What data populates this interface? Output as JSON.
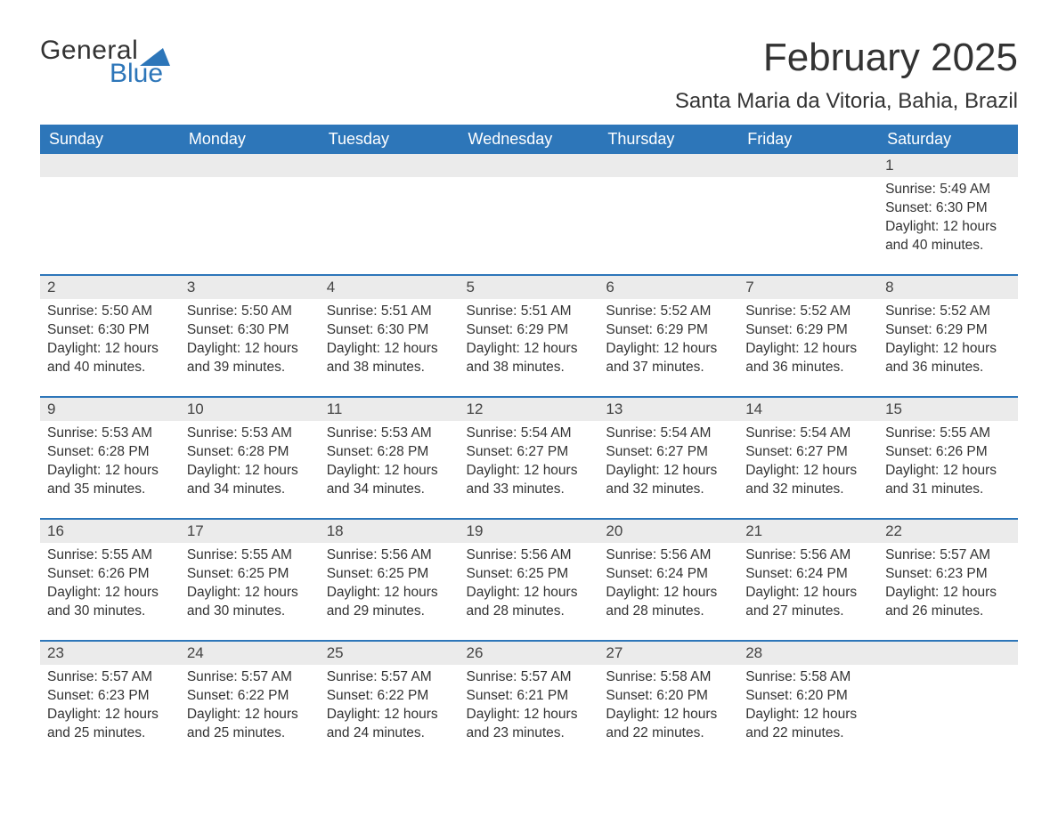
{
  "logo": {
    "word1": "General",
    "word2": "Blue",
    "sail_color": "#2d76b9"
  },
  "title": "February 2025",
  "location": "Santa Maria da Vitoria, Bahia, Brazil",
  "colors": {
    "header_bg": "#2d76b9",
    "header_text": "#ffffff",
    "daynum_bg": "#ebebeb",
    "row_divider": "#2d76b9",
    "body_text": "#333333",
    "background": "#ffffff"
  },
  "typography": {
    "title_fontsize": 44,
    "location_fontsize": 24,
    "header_fontsize": 18,
    "daynum_fontsize": 17,
    "body_fontsize": 15.5
  },
  "day_headers": [
    "Sunday",
    "Monday",
    "Tuesday",
    "Wednesday",
    "Thursday",
    "Friday",
    "Saturday"
  ],
  "weeks": [
    [
      null,
      null,
      null,
      null,
      null,
      null,
      {
        "n": "1",
        "sr": "Sunrise: 5:49 AM",
        "ss": "Sunset: 6:30 PM",
        "d1": "Daylight: 12 hours",
        "d2": "and 40 minutes."
      }
    ],
    [
      {
        "n": "2",
        "sr": "Sunrise: 5:50 AM",
        "ss": "Sunset: 6:30 PM",
        "d1": "Daylight: 12 hours",
        "d2": "and 40 minutes."
      },
      {
        "n": "3",
        "sr": "Sunrise: 5:50 AM",
        "ss": "Sunset: 6:30 PM",
        "d1": "Daylight: 12 hours",
        "d2": "and 39 minutes."
      },
      {
        "n": "4",
        "sr": "Sunrise: 5:51 AM",
        "ss": "Sunset: 6:30 PM",
        "d1": "Daylight: 12 hours",
        "d2": "and 38 minutes."
      },
      {
        "n": "5",
        "sr": "Sunrise: 5:51 AM",
        "ss": "Sunset: 6:29 PM",
        "d1": "Daylight: 12 hours",
        "d2": "and 38 minutes."
      },
      {
        "n": "6",
        "sr": "Sunrise: 5:52 AM",
        "ss": "Sunset: 6:29 PM",
        "d1": "Daylight: 12 hours",
        "d2": "and 37 minutes."
      },
      {
        "n": "7",
        "sr": "Sunrise: 5:52 AM",
        "ss": "Sunset: 6:29 PM",
        "d1": "Daylight: 12 hours",
        "d2": "and 36 minutes."
      },
      {
        "n": "8",
        "sr": "Sunrise: 5:52 AM",
        "ss": "Sunset: 6:29 PM",
        "d1": "Daylight: 12 hours",
        "d2": "and 36 minutes."
      }
    ],
    [
      {
        "n": "9",
        "sr": "Sunrise: 5:53 AM",
        "ss": "Sunset: 6:28 PM",
        "d1": "Daylight: 12 hours",
        "d2": "and 35 minutes."
      },
      {
        "n": "10",
        "sr": "Sunrise: 5:53 AM",
        "ss": "Sunset: 6:28 PM",
        "d1": "Daylight: 12 hours",
        "d2": "and 34 minutes."
      },
      {
        "n": "11",
        "sr": "Sunrise: 5:53 AM",
        "ss": "Sunset: 6:28 PM",
        "d1": "Daylight: 12 hours",
        "d2": "and 34 minutes."
      },
      {
        "n": "12",
        "sr": "Sunrise: 5:54 AM",
        "ss": "Sunset: 6:27 PM",
        "d1": "Daylight: 12 hours",
        "d2": "and 33 minutes."
      },
      {
        "n": "13",
        "sr": "Sunrise: 5:54 AM",
        "ss": "Sunset: 6:27 PM",
        "d1": "Daylight: 12 hours",
        "d2": "and 32 minutes."
      },
      {
        "n": "14",
        "sr": "Sunrise: 5:54 AM",
        "ss": "Sunset: 6:27 PM",
        "d1": "Daylight: 12 hours",
        "d2": "and 32 minutes."
      },
      {
        "n": "15",
        "sr": "Sunrise: 5:55 AM",
        "ss": "Sunset: 6:26 PM",
        "d1": "Daylight: 12 hours",
        "d2": "and 31 minutes."
      }
    ],
    [
      {
        "n": "16",
        "sr": "Sunrise: 5:55 AM",
        "ss": "Sunset: 6:26 PM",
        "d1": "Daylight: 12 hours",
        "d2": "and 30 minutes."
      },
      {
        "n": "17",
        "sr": "Sunrise: 5:55 AM",
        "ss": "Sunset: 6:25 PM",
        "d1": "Daylight: 12 hours",
        "d2": "and 30 minutes."
      },
      {
        "n": "18",
        "sr": "Sunrise: 5:56 AM",
        "ss": "Sunset: 6:25 PM",
        "d1": "Daylight: 12 hours",
        "d2": "and 29 minutes."
      },
      {
        "n": "19",
        "sr": "Sunrise: 5:56 AM",
        "ss": "Sunset: 6:25 PM",
        "d1": "Daylight: 12 hours",
        "d2": "and 28 minutes."
      },
      {
        "n": "20",
        "sr": "Sunrise: 5:56 AM",
        "ss": "Sunset: 6:24 PM",
        "d1": "Daylight: 12 hours",
        "d2": "and 28 minutes."
      },
      {
        "n": "21",
        "sr": "Sunrise: 5:56 AM",
        "ss": "Sunset: 6:24 PM",
        "d1": "Daylight: 12 hours",
        "d2": "and 27 minutes."
      },
      {
        "n": "22",
        "sr": "Sunrise: 5:57 AM",
        "ss": "Sunset: 6:23 PM",
        "d1": "Daylight: 12 hours",
        "d2": "and 26 minutes."
      }
    ],
    [
      {
        "n": "23",
        "sr": "Sunrise: 5:57 AM",
        "ss": "Sunset: 6:23 PM",
        "d1": "Daylight: 12 hours",
        "d2": "and 25 minutes."
      },
      {
        "n": "24",
        "sr": "Sunrise: 5:57 AM",
        "ss": "Sunset: 6:22 PM",
        "d1": "Daylight: 12 hours",
        "d2": "and 25 minutes."
      },
      {
        "n": "25",
        "sr": "Sunrise: 5:57 AM",
        "ss": "Sunset: 6:22 PM",
        "d1": "Daylight: 12 hours",
        "d2": "and 24 minutes."
      },
      {
        "n": "26",
        "sr": "Sunrise: 5:57 AM",
        "ss": "Sunset: 6:21 PM",
        "d1": "Daylight: 12 hours",
        "d2": "and 23 minutes."
      },
      {
        "n": "27",
        "sr": "Sunrise: 5:58 AM",
        "ss": "Sunset: 6:20 PM",
        "d1": "Daylight: 12 hours",
        "d2": "and 22 minutes."
      },
      {
        "n": "28",
        "sr": "Sunrise: 5:58 AM",
        "ss": "Sunset: 6:20 PM",
        "d1": "Daylight: 12 hours",
        "d2": "and 22 minutes."
      },
      null
    ]
  ]
}
